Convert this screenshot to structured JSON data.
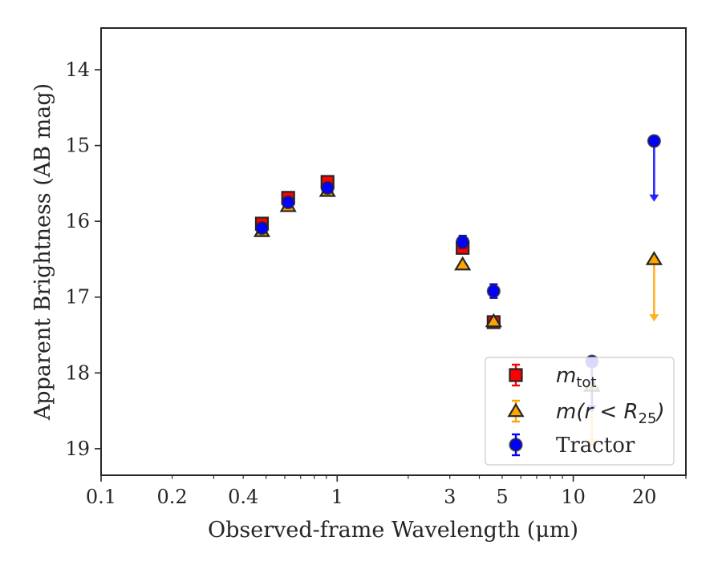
{
  "chart_data": {
    "type": "scatter",
    "xlabel": "Observed-frame Wavelength (μm)",
    "ylabel": "Apparent Brightness (AB mag)",
    "xscale": "log",
    "xlim": [
      0.1,
      30
    ],
    "ylim": [
      19.35,
      13.45
    ],
    "y_inverted": true,
    "grid": false,
    "legend_position": "lower-right",
    "x_ticks": [
      0.1,
      0.2,
      0.4,
      1,
      3,
      5,
      10,
      20
    ],
    "x_tick_labels": [
      "0.1",
      "0.2",
      "0.4",
      "1",
      "3",
      "5",
      "10",
      "20"
    ],
    "y_ticks": [
      14,
      15,
      16,
      17,
      18,
      19
    ],
    "y_tick_labels": [
      "14",
      "15",
      "16",
      "17",
      "18",
      "19"
    ],
    "series": [
      {
        "name": "m_tot",
        "legend_label": "m",
        "legend_subscript": "tot",
        "marker": "square",
        "color": "#ff0000",
        "edge_color": "#262626",
        "points": [
          {
            "x": 0.48,
            "y": 16.03,
            "err": 0.06
          },
          {
            "x": 0.62,
            "y": 15.69,
            "err": 0.06
          },
          {
            "x": 0.91,
            "y": 15.48,
            "err": 0.06
          },
          {
            "x": 3.4,
            "y": 16.35,
            "err": 0.07
          },
          {
            "x": 4.6,
            "y": 17.33,
            "err": 0.07
          }
        ],
        "upper_limits": []
      },
      {
        "name": "m(r < R_25)",
        "legend_label": "m(r < R",
        "legend_subscript": "25",
        "legend_suffix": ")",
        "marker": "triangle",
        "color": "#ffa500",
        "edge_color": "#262626",
        "points": [
          {
            "x": 0.48,
            "y": 16.13,
            "err": 0.0
          },
          {
            "x": 0.62,
            "y": 15.8,
            "err": 0.0
          },
          {
            "x": 0.91,
            "y": 15.6,
            "err": 0.0
          },
          {
            "x": 3.4,
            "y": 16.57,
            "err": 0.0
          },
          {
            "x": 4.6,
            "y": 17.32,
            "err": 0.0
          }
        ],
        "upper_limits": [
          {
            "x": 12.0,
            "y": 18.17,
            "to": 18.95
          },
          {
            "x": 22.0,
            "y": 16.5,
            "to": 17.3
          }
        ]
      },
      {
        "name": "Tractor",
        "legend_label": "Tractor",
        "marker": "circle",
        "color": "#0000ff",
        "edge_color": "#262626",
        "points": [
          {
            "x": 0.48,
            "y": 16.09,
            "err": 0.05
          },
          {
            "x": 0.62,
            "y": 15.75,
            "err": 0.05
          },
          {
            "x": 0.91,
            "y": 15.56,
            "err": 0.05
          },
          {
            "x": 3.4,
            "y": 16.27,
            "err": 0.08
          },
          {
            "x": 4.6,
            "y": 16.92,
            "err": 0.09
          }
        ],
        "upper_limits": [
          {
            "x": 12.0,
            "y": 17.85,
            "to": 18.5
          },
          {
            "x": 22.0,
            "y": 14.94,
            "to": 15.72
          }
        ]
      }
    ]
  }
}
